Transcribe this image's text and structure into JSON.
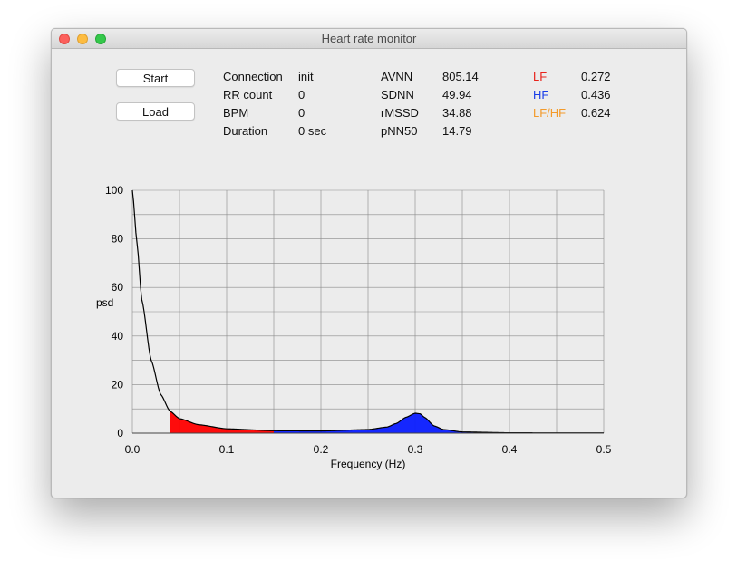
{
  "window": {
    "title": "Heart rate monitor"
  },
  "buttons": {
    "start": "Start",
    "load": "Load"
  },
  "stats_col1": [
    {
      "label": "Connection",
      "value": "init"
    },
    {
      "label": "RR count",
      "value": "0"
    },
    {
      "label": "BPM",
      "value": "0"
    },
    {
      "label": "Duration",
      "value": "0 sec"
    }
  ],
  "stats_col2": [
    {
      "label": "AVNN",
      "value": "805.14"
    },
    {
      "label": "SDNN",
      "value": "49.94"
    },
    {
      "label": "rMSSD",
      "value": "34.88"
    },
    {
      "label": "pNN50",
      "value": "14.79"
    }
  ],
  "stats_col3": [
    {
      "label": "LF",
      "value": "0.272",
      "color": "#e8231b"
    },
    {
      "label": "HF",
      "value": "0.436",
      "color": "#1a3ee8"
    },
    {
      "label": "LF/HF",
      "value": "0.624",
      "color": "#f39a2a"
    }
  ],
  "chart_data": {
    "type": "area",
    "xlabel": "Frequency (Hz)",
    "ylabel": "psd",
    "xlim": [
      0,
      0.5
    ],
    "ylim": [
      0,
      100
    ],
    "xticks": [
      "0.0",
      "0.1",
      "0.2",
      "0.3",
      "0.4",
      "0.5"
    ],
    "yticks": [
      "0",
      "20",
      "40",
      "60",
      "80",
      "100"
    ],
    "grid": true,
    "bands": [
      {
        "name": "LF",
        "range": [
          0.04,
          0.15
        ],
        "color": "#ff0000"
      },
      {
        "name": "HF",
        "range": [
          0.15,
          0.4
        ],
        "color": "#0a1cff"
      }
    ],
    "series": [
      {
        "x": [
          0.0,
          0.005,
          0.01,
          0.02,
          0.03,
          0.04,
          0.05,
          0.07,
          0.1,
          0.15,
          0.2,
          0.25,
          0.27,
          0.28,
          0.29,
          0.3,
          0.305,
          0.31,
          0.32,
          0.33,
          0.35,
          0.4,
          0.45,
          0.5
        ],
        "y": [
          100,
          78,
          55,
          30,
          16,
          9,
          6,
          3.5,
          1.8,
          1.0,
          0.9,
          1.5,
          2.5,
          4.0,
          6.5,
          8.2,
          8.0,
          6.5,
          3.0,
          1.5,
          0.5,
          0.15,
          0.1,
          0.1
        ]
      }
    ]
  }
}
